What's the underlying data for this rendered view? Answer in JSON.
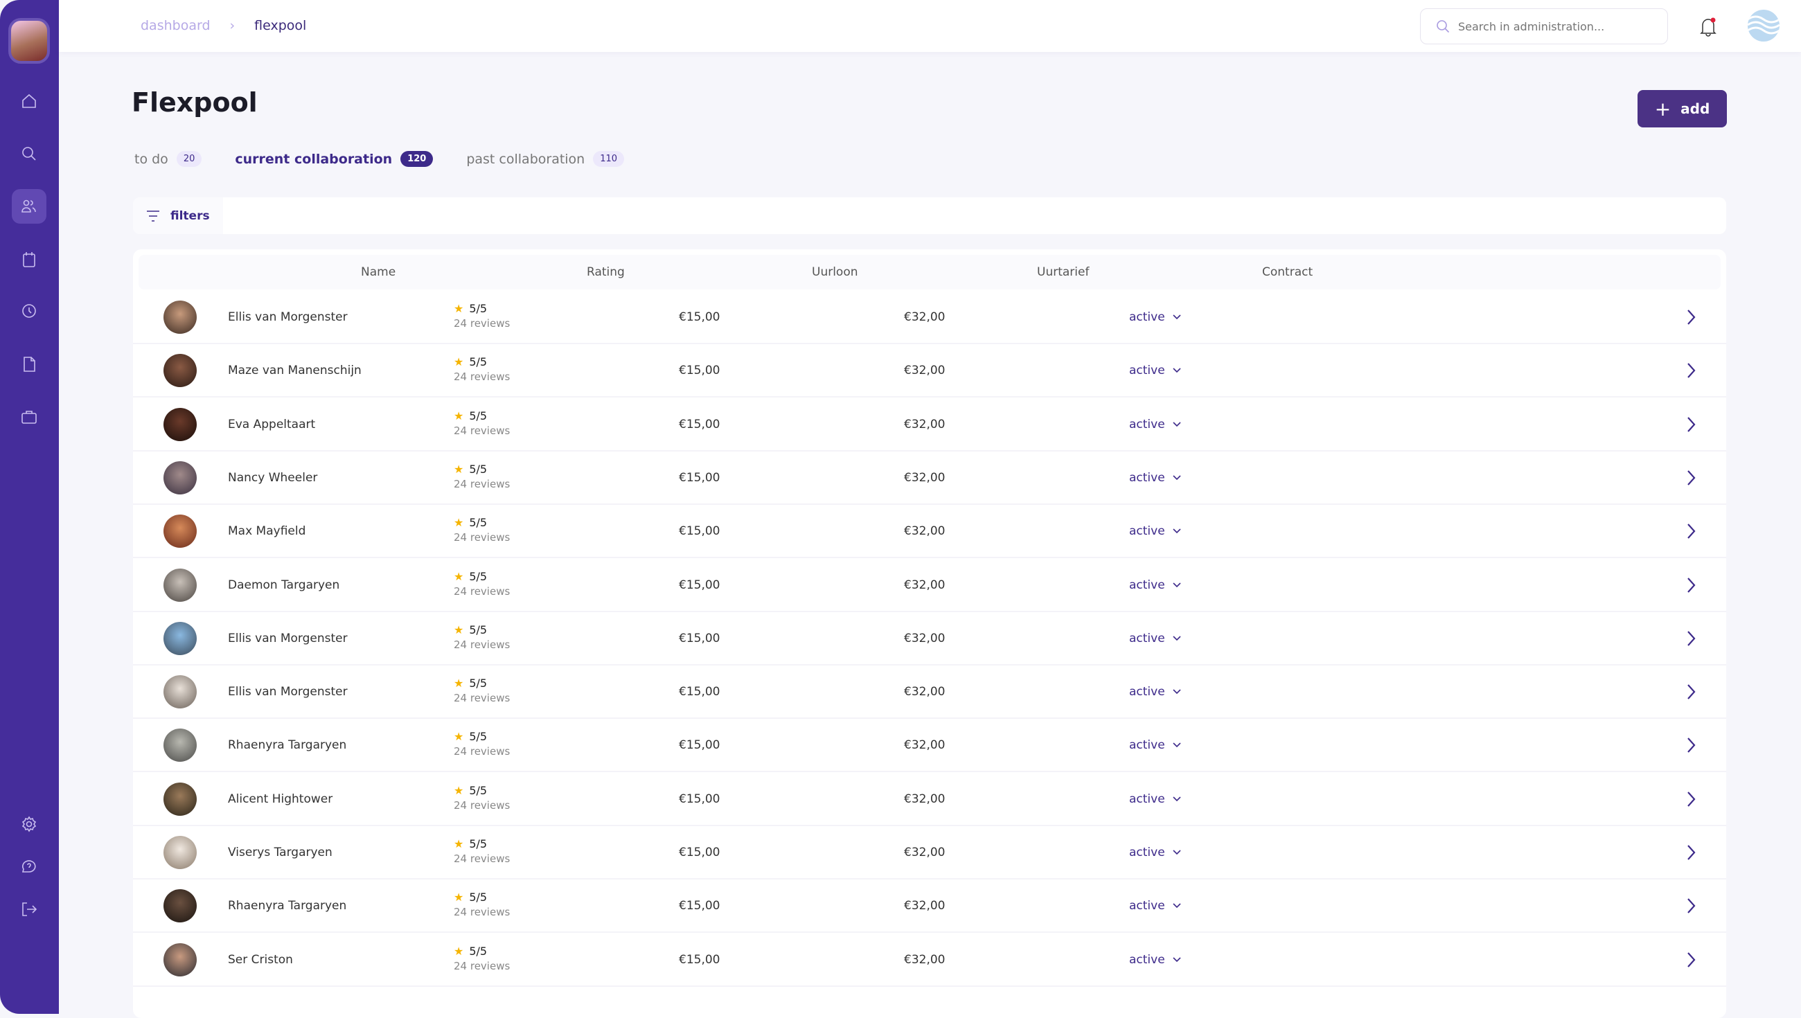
{
  "sidebar": {
    "items": [
      {
        "icon": "home-icon"
      },
      {
        "icon": "search-icon"
      },
      {
        "icon": "users-icon",
        "active": true
      },
      {
        "icon": "calendar-icon"
      },
      {
        "icon": "clock-icon"
      },
      {
        "icon": "document-icon"
      },
      {
        "icon": "briefcase-icon"
      }
    ],
    "bottom": [
      {
        "icon": "gear-icon"
      },
      {
        "icon": "help-icon"
      },
      {
        "icon": "logout-icon"
      }
    ]
  },
  "breadcrumb": {
    "parent": "dashboard",
    "current": "flexpool"
  },
  "search": {
    "placeholder": "Search in administration..."
  },
  "page": {
    "title": "Flexpool",
    "add_label": "add"
  },
  "tabs": [
    {
      "label": "to do",
      "count": "20"
    },
    {
      "label": "current collaboration",
      "count": "120",
      "active": true
    },
    {
      "label": "past collaboration",
      "count": "110"
    }
  ],
  "filters_label": "filters",
  "table": {
    "columns": [
      "Name",
      "Rating",
      "Uurloon",
      "Uurtarief",
      "Contract"
    ],
    "rows": [
      {
        "name": "Ellis van Morgenster",
        "rating": "5/5",
        "reviews": "24 reviews",
        "uurloon": "€15,00",
        "uurtarief": "€32,00",
        "contract": "active"
      },
      {
        "name": "Maze van Manenschijn",
        "rating": "5/5",
        "reviews": "24 reviews",
        "uurloon": "€15,00",
        "uurtarief": "€32,00",
        "contract": "active"
      },
      {
        "name": "Eva Appeltaart",
        "rating": "5/5",
        "reviews": "24 reviews",
        "uurloon": "€15,00",
        "uurtarief": "€32,00",
        "contract": "active"
      },
      {
        "name": "Nancy Wheeler",
        "rating": "5/5",
        "reviews": "24 reviews",
        "uurloon": "€15,00",
        "uurtarief": "€32,00",
        "contract": "active"
      },
      {
        "name": "Max Mayfield",
        "rating": "5/5",
        "reviews": "24 reviews",
        "uurloon": "€15,00",
        "uurtarief": "€32,00",
        "contract": "active"
      },
      {
        "name": "Daemon Targaryen",
        "rating": "5/5",
        "reviews": "24 reviews",
        "uurloon": "€15,00",
        "uurtarief": "€32,00",
        "contract": "active"
      },
      {
        "name": "Ellis van Morgenster",
        "rating": "5/5",
        "reviews": "24 reviews",
        "uurloon": "€15,00",
        "uurtarief": "€32,00",
        "contract": "active"
      },
      {
        "name": "Ellis van Morgenster",
        "rating": "5/5",
        "reviews": "24 reviews",
        "uurloon": "€15,00",
        "uurtarief": "€32,00",
        "contract": "active"
      },
      {
        "name": "Rhaenyra Targaryen",
        "rating": "5/5",
        "reviews": "24 reviews",
        "uurloon": "€15,00",
        "uurtarief": "€32,00",
        "contract": "active"
      },
      {
        "name": "Alicent Hightower",
        "rating": "5/5",
        "reviews": "24 reviews",
        "uurloon": "€15,00",
        "uurtarief": "€32,00",
        "contract": "active"
      },
      {
        "name": "Viserys Targaryen",
        "rating": "5/5",
        "reviews": "24 reviews",
        "uurloon": "€15,00",
        "uurtarief": "€32,00",
        "contract": "active"
      },
      {
        "name": "Rhaenyra Targaryen",
        "rating": "5/5",
        "reviews": "24 reviews",
        "uurloon": "€15,00",
        "uurtarief": "€32,00",
        "contract": "active"
      },
      {
        "name": "Ser Criston",
        "rating": "5/5",
        "reviews": "24 reviews",
        "uurloon": "€15,00",
        "uurtarief": "€32,00",
        "contract": "active"
      }
    ]
  },
  "colors": {
    "sidebar": "#452d9b",
    "accent": "#3d2a8a",
    "button": "#4b3285",
    "star": "#f5b400",
    "notification": "#e0203a"
  }
}
